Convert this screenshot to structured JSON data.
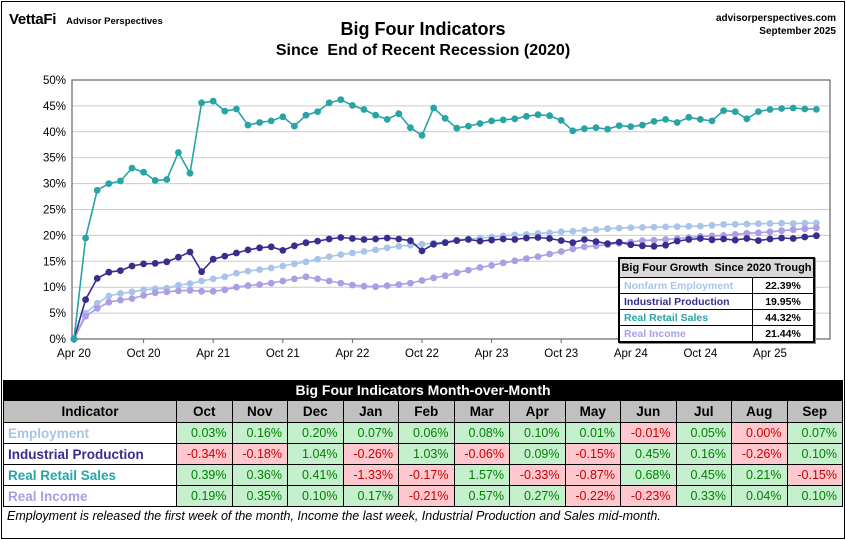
{
  "header": {
    "logo": "VettaFi",
    "logo_sub": "Advisor Perspectives",
    "title_line1": "Big Four Indicators",
    "title_line2": "Since  End of Recent Recession (2020)",
    "source_site": "advisorperspectives.com",
    "source_date": "September 2025"
  },
  "chart_data": {
    "type": "line",
    "title": "Big Four Indicators Since End of Recent Recession (2020)",
    "ylim": [
      0,
      50
    ],
    "y_tick_step": 5,
    "y_tick_labels": [
      "0%",
      "5%",
      "10%",
      "15%",
      "20%",
      "25%",
      "30%",
      "35%",
      "40%",
      "45%",
      "50%"
    ],
    "x_tick_labels": [
      "Apr 20",
      "Oct 20",
      "Apr 21",
      "Oct 21",
      "Apr 22",
      "Oct 22",
      "Apr 23",
      "Oct 23",
      "Apr 24",
      "Oct 24",
      "Apr 25"
    ],
    "x_tick_month_index": [
      0,
      6,
      12,
      18,
      24,
      30,
      36,
      42,
      48,
      54,
      60
    ],
    "x_start": "Apr 2020",
    "x_end": "Aug 2025",
    "grid": true,
    "colors": {
      "grid": "#CBCBCB",
      "plot_border": "#666666"
    },
    "series": [
      {
        "name": "Nonfarm Employment",
        "color": "#A9C4EA",
        "values": [
          0,
          5.0,
          6.9,
          8.3,
          8.8,
          9.1,
          9.5,
          9.7,
          9.8,
          10.4,
          10.7,
          11.2,
          11.6,
          12.0,
          12.7,
          13.1,
          13.4,
          13.7,
          14.1,
          14.5,
          14.9,
          15.4,
          15.9,
          16.3,
          16.6,
          16.9,
          17.2,
          17.6,
          17.9,
          18.1,
          18.3,
          18.5,
          18.7,
          19.1,
          19.3,
          19.5,
          19.7,
          19.9,
          20.1,
          20.2,
          20.4,
          20.5,
          20.7,
          20.8,
          21.0,
          21.1,
          21.3,
          21.4,
          21.5,
          21.55,
          21.6,
          21.65,
          21.7,
          21.75,
          21.8,
          21.95,
          22.1,
          22.15,
          22.2,
          22.25,
          22.3,
          22.35,
          22.3,
          22.35,
          22.39
        ]
      },
      {
        "name": "Real Income",
        "color": "#AC9DE5",
        "values": [
          0,
          4.4,
          5.9,
          7.1,
          7.5,
          7.8,
          8.4,
          8.9,
          9.1,
          9.3,
          9.4,
          9.2,
          9.2,
          9.5,
          10.0,
          10.3,
          10.5,
          10.8,
          11.2,
          11.6,
          12.0,
          11.6,
          11.2,
          10.8,
          10.4,
          10.2,
          10.1,
          10.3,
          10.5,
          10.8,
          11.3,
          11.8,
          12.2,
          12.8,
          13.3,
          13.8,
          14.2,
          14.7,
          15.1,
          15.5,
          15.9,
          16.4,
          16.9,
          17.4,
          17.8,
          18.0,
          18.2,
          18.5,
          18.7,
          19.0,
          19.1,
          19.2,
          19.4,
          19.6,
          19.8,
          19.9,
          20.0,
          20.2,
          20.4,
          20.5,
          20.7,
          20.9,
          21.1,
          21.3,
          21.44
        ]
      },
      {
        "name": "Industrial Production",
        "color": "#382D8F",
        "values": [
          0,
          7.6,
          11.7,
          12.9,
          13.2,
          14.1,
          14.5,
          14.6,
          14.9,
          15.8,
          16.8,
          13.0,
          15.4,
          16.0,
          16.6,
          17.2,
          17.6,
          17.8,
          17.1,
          18.0,
          18.6,
          18.9,
          19.3,
          19.6,
          19.4,
          19.2,
          19.3,
          19.5,
          19.3,
          19.0,
          17.0,
          18.3,
          18.6,
          19.0,
          19.2,
          18.9,
          19.1,
          19.3,
          19.2,
          19.5,
          19.6,
          19.4,
          19.0,
          18.6,
          19.2,
          18.8,
          18.4,
          18.7,
          18.2,
          18.0,
          17.9,
          18.1,
          18.9,
          19.2,
          19.4,
          19.15,
          19.3,
          19.1,
          19.4,
          19.0,
          19.3,
          19.5,
          19.4,
          19.7,
          19.95
        ]
      },
      {
        "name": "Real Retail Sales",
        "color": "#27A4A6",
        "values": [
          0,
          19.5,
          28.7,
          30.0,
          30.5,
          33.0,
          32.2,
          30.6,
          30.8,
          36.0,
          32.0,
          45.6,
          45.9,
          44.0,
          44.4,
          41.3,
          41.8,
          42.1,
          42.9,
          41.1,
          43.2,
          43.9,
          45.6,
          46.2,
          45.1,
          44.3,
          43.2,
          42.4,
          43.5,
          40.8,
          39.3,
          44.6,
          42.6,
          40.7,
          41.1,
          41.6,
          42.1,
          42.3,
          42.5,
          43.0,
          43.3,
          43.1,
          42.2,
          40.2,
          40.6,
          40.8,
          40.5,
          41.2,
          41.0,
          41.3,
          42.0,
          42.4,
          41.8,
          42.8,
          42.4,
          42.1,
          44.1,
          43.9,
          42.5,
          43.9,
          44.3,
          44.5,
          44.6,
          44.4,
          44.32
        ]
      }
    ],
    "legend": {
      "title": "Big Four Growth  Since 2020 Trough",
      "position": "inside-right",
      "entries": [
        {
          "label": "Nonfarm Employment",
          "color": "#A9C4EA",
          "value": "22.39%"
        },
        {
          "label": "Industrial Production",
          "color": "#382D8F",
          "value": "19.95%"
        },
        {
          "label": "Real Retail Sales",
          "color": "#27A4A6",
          "value": "44.32%"
        },
        {
          "label": "Real Income",
          "color": "#AC9DE5",
          "value": "21.44%"
        }
      ]
    }
  },
  "table": {
    "title": "Big Four Indicators Month-over-Month",
    "columns": [
      "Indicator",
      "Oct",
      "Nov",
      "Dec",
      "Jan",
      "Feb",
      "Mar",
      "Apr",
      "May",
      "Jun",
      "Jul",
      "Aug",
      "Sep"
    ],
    "positive_bg": "#C6EFCE",
    "positive_text": "#008000",
    "negative_bg": "#FFC7CE",
    "negative_text": "#C80000",
    "rows": [
      {
        "label": "Employment",
        "color": "#A9C4EA",
        "values": [
          "0.03%",
          "0.16%",
          "0.20%",
          "0.07%",
          "0.06%",
          "0.08%",
          "0.10%",
          "0.01%",
          "-0.01%",
          "0.05%",
          "0.00%",
          "0.07%"
        ]
      },
      {
        "label": "Industrial Production",
        "color": "#382D8F",
        "values": [
          "-0.34%",
          "-0.18%",
          "1.04%",
          "-0.26%",
          "1.03%",
          "-0.06%",
          "0.09%",
          "-0.15%",
          "0.45%",
          "0.16%",
          "-0.26%",
          "0.10%"
        ]
      },
      {
        "label": "Real Retail Sales",
        "color": "#27A4A6",
        "values": [
          "0.39%",
          "0.36%",
          "0.41%",
          "-1.33%",
          "-0.17%",
          "1.57%",
          "-0.33%",
          "-0.87%",
          "0.68%",
          "0.45%",
          "0.21%",
          "-0.15%"
        ]
      },
      {
        "label": "Real Income",
        "color": "#AC9DE5",
        "values": [
          "0.19%",
          "0.35%",
          "0.10%",
          "0.17%",
          "-0.21%",
          "0.57%",
          "0.27%",
          "-0.22%",
          "-0.23%",
          "0.33%",
          "0.04%",
          "0.10%"
        ]
      }
    ]
  },
  "footnote": "Employment is released the first week of the month, Income the last week, Industrial Production and Sales mid-month."
}
